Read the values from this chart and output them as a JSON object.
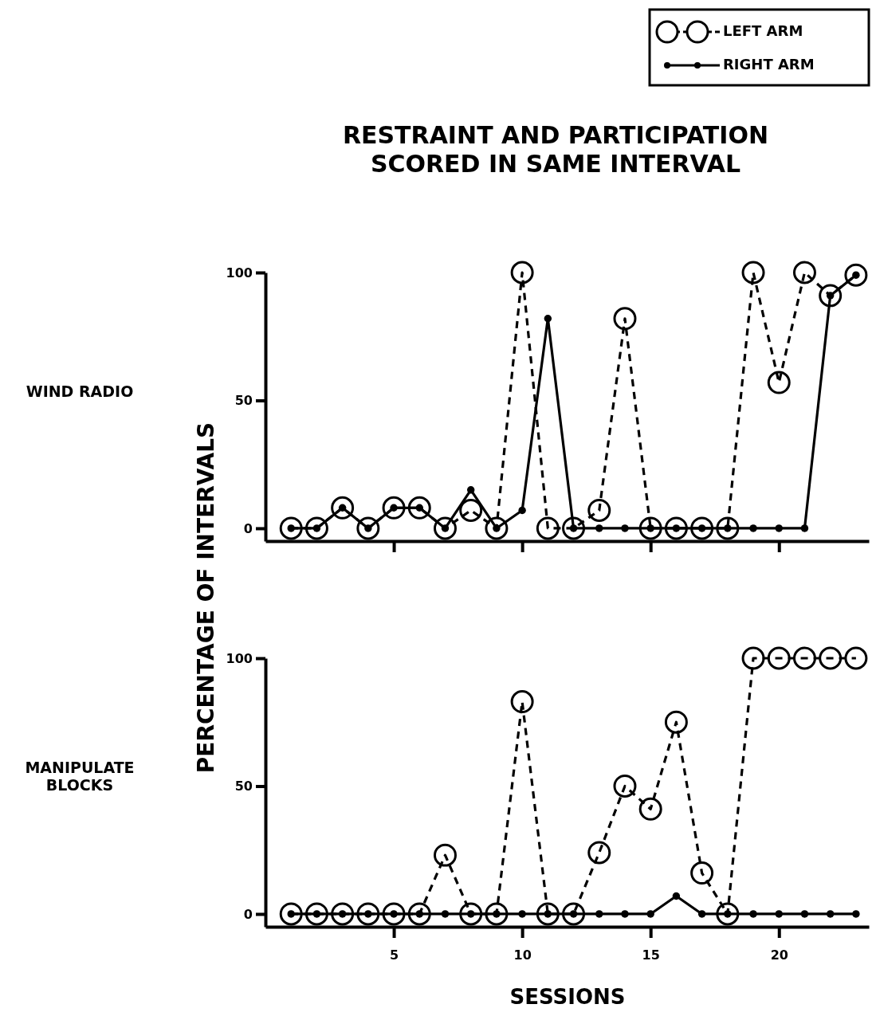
{
  "chart_data": [
    {
      "type": "line",
      "title": "RESTRAINT AND PARTICIPATION\nSCORED IN SAME INTERVAL",
      "annotations": [
        "WIND RADIO"
      ],
      "ylabel": "PERCENTAGE OF INTERVALS",
      "x": [
        1,
        2,
        3,
        4,
        5,
        6,
        7,
        8,
        9,
        10,
        11,
        12,
        13,
        14,
        15,
        16,
        17,
        18,
        19,
        20,
        21,
        22,
        23
      ],
      "xlim": [
        0,
        23.5
      ],
      "xticks": [
        5,
        10,
        15,
        20
      ],
      "ylim": [
        -5,
        100
      ],
      "yticks": [
        0,
        50,
        100
      ],
      "tick_labels": "y",
      "legend": "top right",
      "series": [
        {
          "name": "LEFT ARM",
          "color": "#000000",
          "line_style": "dashed",
          "marker": "circle",
          "values": [
            0,
            0,
            8,
            0,
            8,
            8,
            0,
            7,
            0,
            100,
            0,
            0,
            7,
            82,
            0,
            0,
            0,
            0,
            100,
            57,
            100,
            91,
            99
          ]
        },
        {
          "name": "RIGHT ARM",
          "color": "#000000",
          "line_style": "solid",
          "marker": "circle",
          "values": [
            0,
            0,
            8,
            0,
            8,
            8,
            0,
            15,
            0,
            7,
            82,
            0,
            0,
            0,
            0,
            0,
            0,
            0,
            0,
            0,
            0,
            91,
            99
          ]
        }
      ]
    },
    {
      "type": "line",
      "annotations": [
        "MANIPULATE\nBLOCKS"
      ],
      "xlabel": "SESSIONS",
      "x": [
        1,
        2,
        3,
        4,
        5,
        6,
        7,
        8,
        9,
        10,
        11,
        12,
        13,
        14,
        15,
        16,
        17,
        18,
        19,
        20,
        21,
        22,
        23
      ],
      "xlim": [
        0,
        23.5
      ],
      "xticks": [
        5,
        10,
        15,
        20
      ],
      "ylim": [
        -5,
        100
      ],
      "yticks": [
        0,
        50,
        100
      ],
      "series": [
        {
          "color": "#000000",
          "line_style": "dashed",
          "marker": "circle",
          "values": [
            0,
            0,
            0,
            0,
            0,
            0,
            23,
            0,
            0,
            83,
            0,
            0,
            24,
            50,
            41,
            75,
            16,
            0,
            100,
            100,
            100,
            100,
            100
          ]
        },
        {
          "color": "#000000",
          "line_style": "solid",
          "marker": "circle",
          "values": [
            0,
            0,
            0,
            0,
            0,
            0,
            0,
            0,
            0,
            0,
            0,
            0,
            0,
            0,
            0,
            7,
            0,
            0,
            0,
            0,
            0,
            0,
            0
          ]
        }
      ]
    }
  ]
}
